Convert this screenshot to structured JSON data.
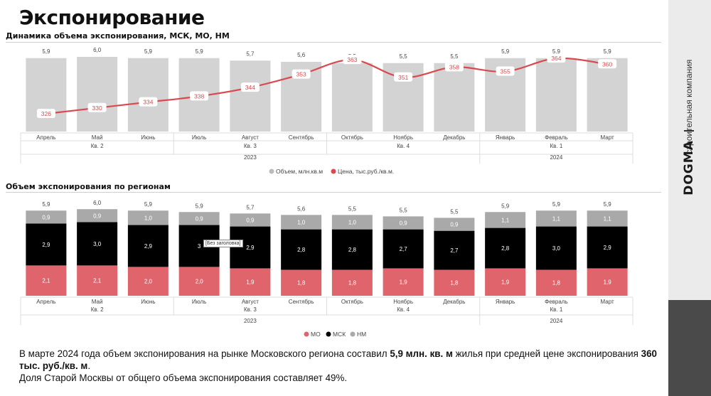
{
  "page": {
    "title": "Экспонирование",
    "chart1_title": "Динамика объема экспонирования, МСК, МО, НМ",
    "chart2_title": "Объем экспонирования по регионам",
    "tooltip": "[Без заголовка]"
  },
  "sidebar": {
    "company": "строительная компания",
    "logo": "DOGMA"
  },
  "summary": {
    "p1": "В марте 2024 года объем экспонирования на рынке Московского региона составил ",
    "b1": "5,9 млн. кв. м",
    "p2": " жилья при средней цене экспонирования ",
    "b2": "360 тыс. руб./кв. м",
    "p3": ".",
    "p4": "Доля Старой Москвы от общего объема экспонирования составляет 49%."
  },
  "colors": {
    "bar_grey": "#d3d3d3",
    "price_line": "#d9494f",
    "mo": "#e0646c",
    "msk": "#000000",
    "nm": "#a9a9a9"
  },
  "chart_data": [
    {
      "type": "bar",
      "categories": [
        "Апрель",
        "Май",
        "Июнь",
        "Июль",
        "Август",
        "Сентябрь",
        "Октябрь",
        "Ноябрь",
        "Декабрь",
        "Январь",
        "Февраль",
        "Март"
      ],
      "quarters": [
        {
          "label": "Кв. 2",
          "under": "Май"
        },
        {
          "label": "Кв. 3",
          "under": "Август"
        },
        {
          "label": "Кв. 4",
          "under": "Ноябрь"
        },
        {
          "label": "Кв. 1",
          "under": "Февраль"
        }
      ],
      "years": [
        {
          "label": "2023",
          "under": "Август"
        },
        {
          "label": "2024",
          "under": "Февраль"
        }
      ],
      "series": [
        {
          "name": "Объем, млн.кв.м",
          "kind": "bar",
          "values": [
            5.9,
            6.0,
            5.9,
            5.9,
            5.7,
            5.6,
            5.5,
            5.5,
            5.5,
            5.9,
            5.9,
            5.9
          ],
          "labels": [
            "5,9",
            "6,0",
            "5,9",
            "5,9",
            "5,7",
            "5,6",
            "5,5",
            "5,5",
            "5,5",
            "5,9",
            "5,9",
            "5,9"
          ]
        },
        {
          "name": "Цена, тыс.руб./кв.м.",
          "kind": "line",
          "values": [
            326,
            330,
            334,
            338,
            344,
            353,
            363,
            351,
            358,
            355,
            364,
            360
          ],
          "labels": [
            "326",
            "330",
            "334",
            "338",
            "344",
            "353",
            "363",
            "351",
            "358",
            "355",
            "364",
            "360"
          ]
        }
      ],
      "legend_position": "bottom-center"
    },
    {
      "type": "bar",
      "stacked": true,
      "categories": [
        "Апрель",
        "Май",
        "Июнь",
        "Июль",
        "Август",
        "Сентябрь",
        "Октябрь",
        "Ноябрь",
        "Декабрь",
        "Январь",
        "Февраль",
        "Март"
      ],
      "totals": [
        "5,9",
        "6,0",
        "5,9",
        "5,9",
        "5,7",
        "5,6",
        "5,5",
        "5,5",
        "5,5",
        "5,9",
        "5,9",
        "5,9"
      ],
      "series": [
        {
          "name": "МО",
          "values": [
            2.1,
            2.1,
            2.0,
            2.0,
            1.9,
            1.8,
            1.8,
            1.9,
            1.8,
            1.9,
            1.8,
            1.9
          ],
          "labels": [
            "2,1",
            "2,1",
            "2,0",
            "2,0",
            "1,9",
            "1,8",
            "1,8",
            "1,9",
            "1,8",
            "1,9",
            "1,8",
            "1,9"
          ]
        },
        {
          "name": "МСК",
          "values": [
            2.9,
            3.0,
            2.9,
            2.9,
            2.9,
            2.8,
            2.8,
            2.7,
            2.7,
            2.8,
            3.0,
            2.9
          ],
          "labels": [
            "2,9",
            "3,0",
            "2,9",
            "3",
            "2,9",
            "2,8",
            "2,8",
            "2,7",
            "2,7",
            "2,8",
            "3,0",
            "2,9"
          ]
        },
        {
          "name": "НМ",
          "values": [
            0.9,
            0.9,
            1.0,
            0.9,
            0.9,
            1.0,
            1.0,
            0.9,
            0.9,
            1.1,
            1.1,
            1.1
          ],
          "labels": [
            "0,9",
            "0,9",
            "1,0",
            "0,9",
            "0,9",
            "1,0",
            "1,0",
            "0,9",
            "0,9",
            "1,1",
            "1,1",
            "1,1"
          ]
        }
      ],
      "legend_position": "bottom-center"
    }
  ]
}
